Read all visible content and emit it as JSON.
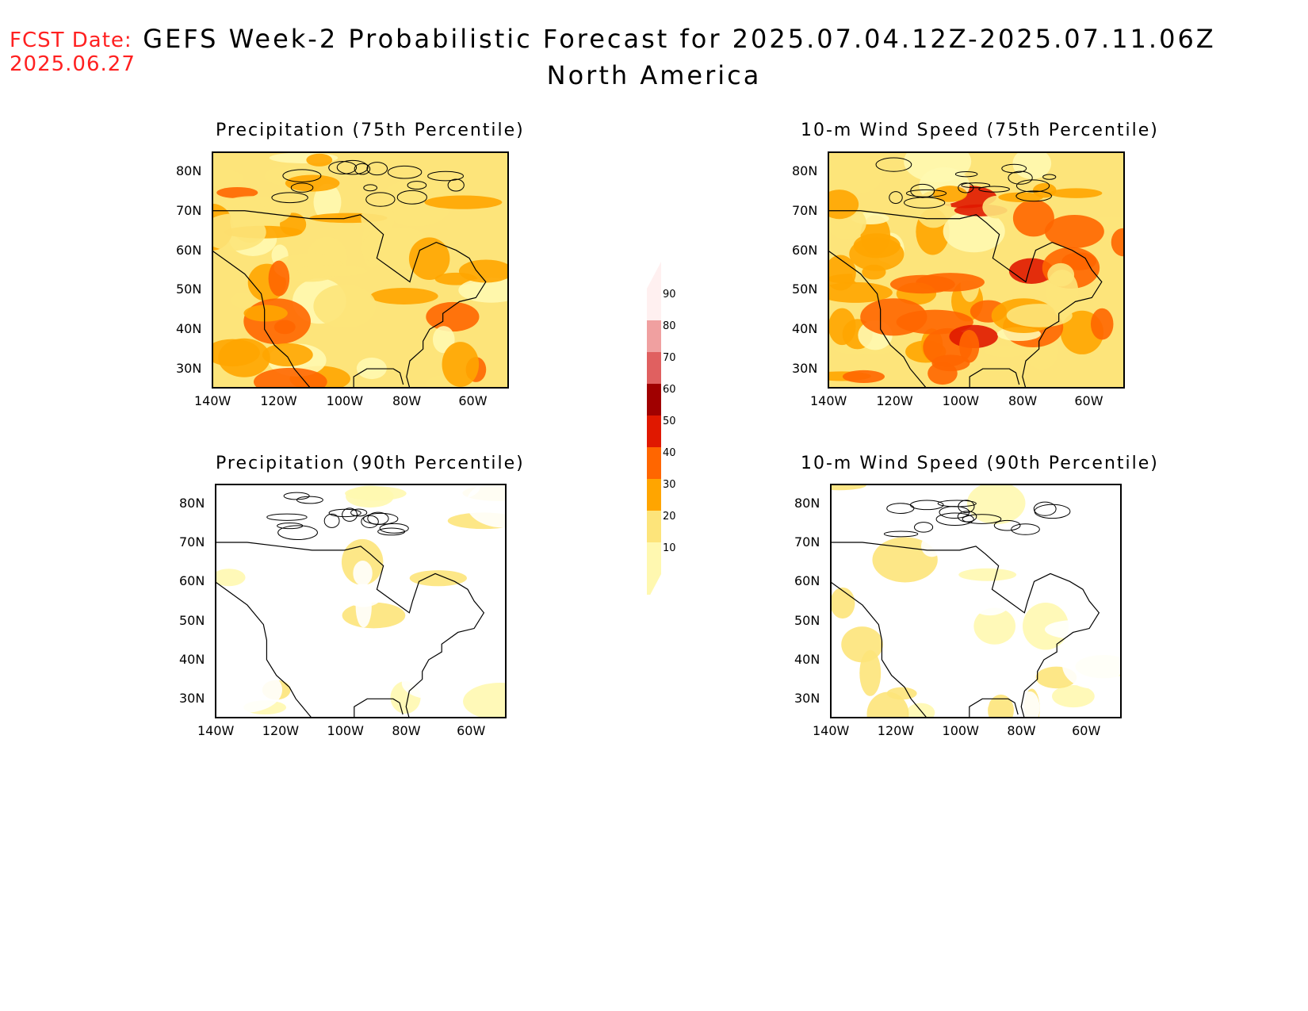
{
  "header": {
    "fcst_label": "FCST Date:",
    "fcst_date": "2025.06.27",
    "title": "GEFS Week-2 Probabilistic Forecast for 2025.07.04.12Z-2025.07.11.06Z",
    "subtitle": "North America"
  },
  "maps": [
    {
      "title": "Precipitation (75th Percentile)",
      "intensity": 0.55,
      "accent": "#ffa500"
    },
    {
      "title": "10-m Wind Speed (75th Percentile)",
      "intensity": 0.75,
      "accent": "#ff6600"
    },
    {
      "title": "Precipitation (90th Percentile)",
      "intensity": 0.2,
      "accent": "#fee88a"
    },
    {
      "title": "10-m Wind Speed (90th Percentile)",
      "intensity": 0.25,
      "accent": "#fee88a"
    }
  ],
  "axes": {
    "lat_labels": [
      "80N",
      "70N",
      "60N",
      "50N",
      "40N",
      "30N"
    ],
    "lon_labels": [
      "140W",
      "120W",
      "100W",
      "80W",
      "60W"
    ]
  },
  "colorbar": {
    "levels": [
      "10",
      "20",
      "30",
      "40",
      "50",
      "60",
      "70",
      "80",
      "90"
    ],
    "colors": [
      "#fff8b0",
      "#fde47a",
      "#ffa500",
      "#ff6600",
      "#e01800",
      "#a00000",
      "#e06060",
      "#f0a0a0",
      "#fff0f0"
    ]
  }
}
